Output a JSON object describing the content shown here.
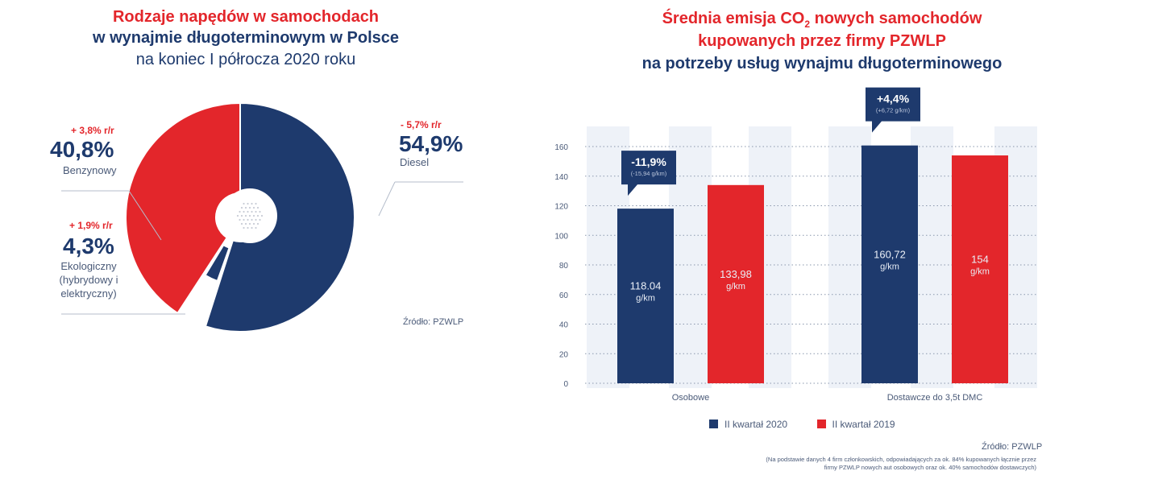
{
  "colors": {
    "navy": "#1e3a6d",
    "red": "#e3262b",
    "band": "#eef2f8",
    "grid": "#8a97ad"
  },
  "left": {
    "title_line1": "Rodzaje napędów w samochodach",
    "title_line2": "w wynajmie długoterminowym w Polsce",
    "title_line3": "na koniec I półrocza 2020 roku",
    "source": "Źródło: PZWLP"
  },
  "right": {
    "title_line1_a": "Średnia emisja CO",
    "title_line1_sub": "2",
    "title_line1_b": " nowych samochodów",
    "title_line2_a": "kupowanych przez firmy ",
    "title_line2_b": "PZWLP",
    "title_line3": "na potrzeby usług wynajmu długoterminowego",
    "source": "Źródło: PZWLP",
    "footnote_line1": "(Na podstawie danych 4 firm członkowskich, odpowiadających za ok. 84% kupowanych łącznie przez",
    "footnote_line2": "firmy PZWLP nowych aut osobowych oraz ok. 40% samochodów dostawczych)"
  },
  "chart_data": [
    {
      "type": "pie",
      "title": "Rodzaje napędów w samochodach w wynajmie długoterminowym w Polsce na koniec I półrocza 2020 roku",
      "slices": [
        {
          "name": "Diesel",
          "value": 54.9,
          "display": "54,9%",
          "change": "- 5,7% r/r",
          "color": "#1e3a6d"
        },
        {
          "name": "Ekologiczny",
          "value": 4.3,
          "display": "4,3%",
          "change": "+ 1,9% r/r",
          "label_lines": [
            "Ekologiczny",
            "(hybrydowy i",
            "elektryczny)"
          ],
          "color": "#1e3a6d"
        },
        {
          "name": "Benzynowy",
          "value": 40.8,
          "display": "40,8%",
          "change": "+ 3,8% r/r",
          "color": "#e3262b"
        }
      ]
    },
    {
      "type": "bar",
      "title": "Średnia emisja CO2 nowych samochodów kupowanych przez firmy PZWLP na potrzeby usług wynajmu długoterminowego",
      "categories": [
        "Osobowe",
        "Dostawcze do 3,5t DMC"
      ],
      "series": [
        {
          "name": "II kwartał 2020",
          "color": "#1e3a6d",
          "values": [
            118.04,
            160.72
          ],
          "labels": [
            "118.04",
            "160,72"
          ]
        },
        {
          "name": "II kwartał 2019",
          "color": "#e3262b",
          "values": [
            133.98,
            154
          ],
          "labels": [
            "133,98",
            "154"
          ]
        }
      ],
      "unit": "g/km",
      "ylim": [
        0,
        160
      ],
      "yticks": [
        0,
        20,
        40,
        60,
        80,
        100,
        120,
        140,
        160
      ],
      "annotations": [
        {
          "category": "Osobowe",
          "change": "-11,9%",
          "detail": "(-15,94 g/km)"
        },
        {
          "category": "Dostawcze do 3,5t DMC",
          "change": "+4,4%",
          "detail": "(+6,72 g/km)"
        }
      ],
      "legend": "bottom"
    }
  ]
}
